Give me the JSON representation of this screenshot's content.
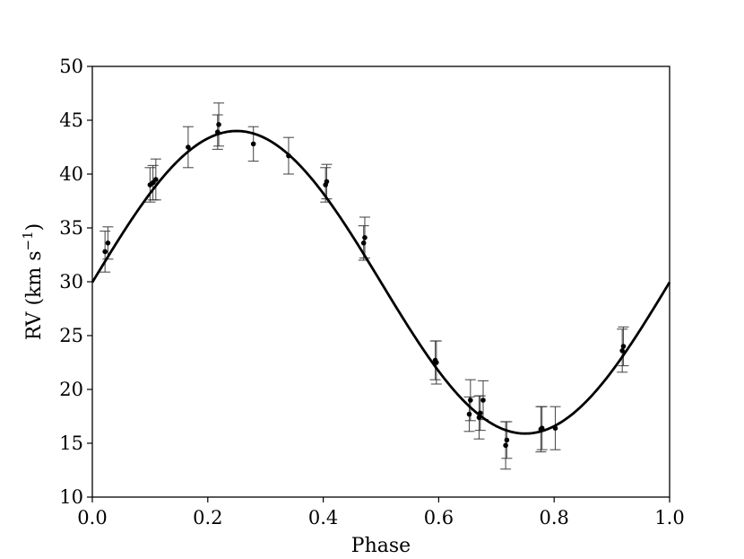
{
  "chart_data": {
    "type": "scatter",
    "xlabel": "Phase",
    "ylabel": {
      "prefix": "RV (km s",
      "superscript": "−1",
      "suffix": ")"
    },
    "xlim": [
      0.0,
      1.0
    ],
    "ylim": [
      10,
      50
    ],
    "x_ticks": [
      "0.0",
      "0.2",
      "0.4",
      "0.6",
      "0.8",
      "1.0"
    ],
    "y_ticks": [
      "10",
      "15",
      "20",
      "25",
      "30",
      "35",
      "40",
      "45",
      "50"
    ],
    "grid": false,
    "legend": "none",
    "series": [
      {
        "type": "scatter_errorbar",
        "points": [
          {
            "x": 0.022,
            "y": 32.8,
            "err": 1.9
          },
          {
            "x": 0.027,
            "y": 33.6,
            "err": 1.5
          },
          {
            "x": 0.1,
            "y": 39.0,
            "err": 1.6
          },
          {
            "x": 0.105,
            "y": 39.2,
            "err": 1.6
          },
          {
            "x": 0.11,
            "y": 39.5,
            "err": 1.9
          },
          {
            "x": 0.166,
            "y": 42.5,
            "err": 1.9
          },
          {
            "x": 0.217,
            "y": 43.9,
            "err": 1.6
          },
          {
            "x": 0.219,
            "y": 44.6,
            "err": 2.0
          },
          {
            "x": 0.279,
            "y": 42.8,
            "err": 1.6
          },
          {
            "x": 0.34,
            "y": 41.7,
            "err": 1.7
          },
          {
            "x": 0.404,
            "y": 39.0,
            "err": 1.6
          },
          {
            "x": 0.406,
            "y": 39.3,
            "err": 1.6
          },
          {
            "x": 0.47,
            "y": 33.6,
            "err": 1.6
          },
          {
            "x": 0.472,
            "y": 34.1,
            "err": 1.9
          },
          {
            "x": 0.594,
            "y": 22.7,
            "err": 1.8
          },
          {
            "x": 0.596,
            "y": 22.5,
            "err": 2.0
          },
          {
            "x": 0.653,
            "y": 17.7,
            "err": 1.6
          },
          {
            "x": 0.655,
            "y": 19.0,
            "err": 1.9
          },
          {
            "x": 0.67,
            "y": 17.4,
            "err": 2.0
          },
          {
            "x": 0.672,
            "y": 17.8,
            "err": 1.6
          },
          {
            "x": 0.677,
            "y": 19.0,
            "err": 1.8
          },
          {
            "x": 0.716,
            "y": 14.8,
            "err": 2.2
          },
          {
            "x": 0.718,
            "y": 15.3,
            "err": 1.7
          },
          {
            "x": 0.777,
            "y": 16.3,
            "err": 2.1
          },
          {
            "x": 0.779,
            "y": 16.4,
            "err": 2.0
          },
          {
            "x": 0.802,
            "y": 16.4,
            "err": 2.0
          },
          {
            "x": 0.918,
            "y": 23.6,
            "err": 2.0
          },
          {
            "x": 0.92,
            "y": 24.0,
            "err": 1.8
          }
        ]
      },
      {
        "type": "line",
        "model": "sinusoid",
        "gamma": 29.95,
        "K": 14.05,
        "phase_of_max": 0.25
      }
    ]
  }
}
